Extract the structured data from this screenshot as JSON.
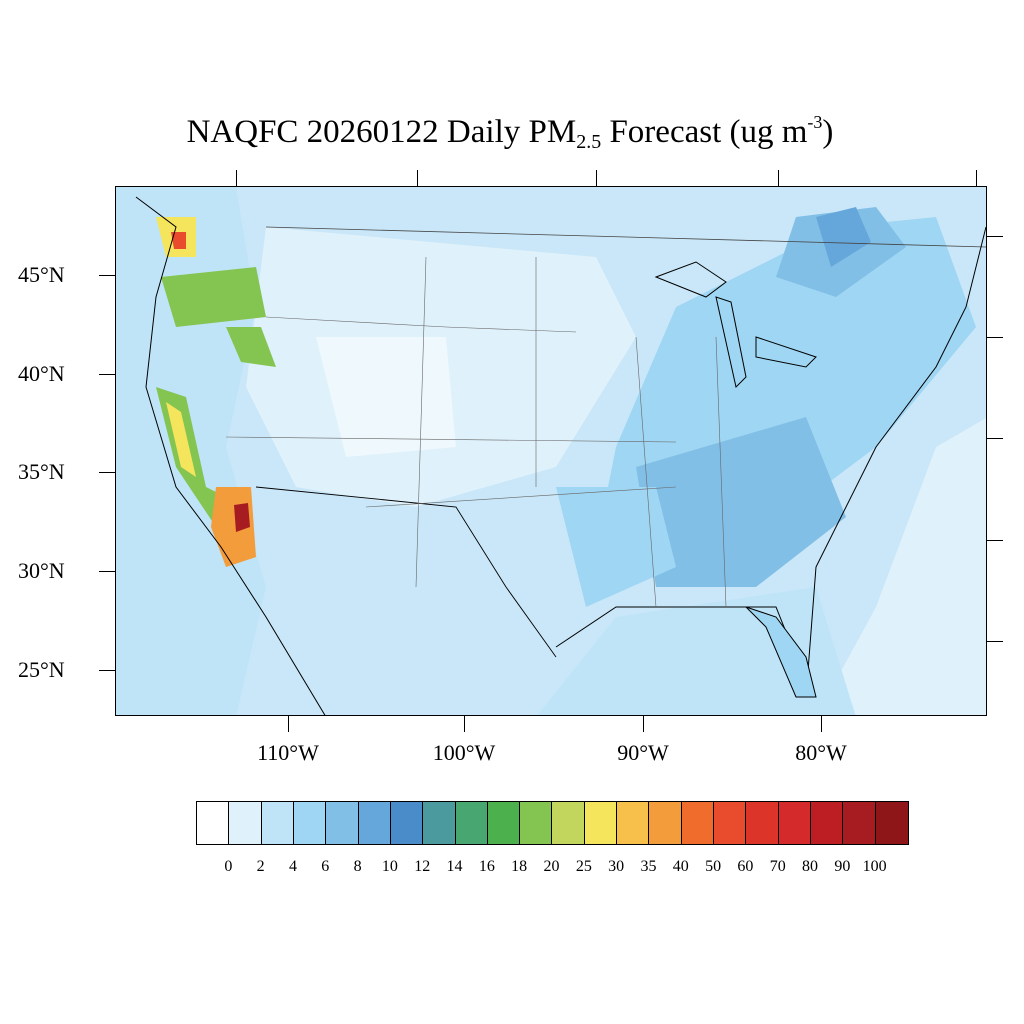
{
  "title": {
    "prefix": "NAQFC 20260122 Daily PM",
    "subscript": "2.5",
    "middle": " Forecast (ug m",
    "superscript": "-3",
    "suffix": ")"
  },
  "axes": {
    "lat_labels": [
      "45°N",
      "40°N",
      "35°N",
      "30°N",
      "25°N"
    ],
    "lon_labels": [
      "110°W",
      "100°W",
      "90°W",
      "80°W"
    ]
  },
  "colorbar": {
    "labels": [
      "0",
      "2",
      "4",
      "6",
      "8",
      "10",
      "12",
      "14",
      "16",
      "18",
      "20",
      "25",
      "30",
      "35",
      "40",
      "50",
      "60",
      "70",
      "80",
      "90",
      "100"
    ],
    "colors": [
      "#ffffff",
      "#dff1fb",
      "#bfe4f7",
      "#9fd6f3",
      "#82bfe6",
      "#66a7db",
      "#4a8cc9",
      "#4a9a9e",
      "#48a670",
      "#4cb04c",
      "#84c450",
      "#c2d55c",
      "#f4e55c",
      "#f6c04a",
      "#f39c3c",
      "#f06c2c",
      "#e84c2c",
      "#dc3428",
      "#d42a2c",
      "#bc1e24",
      "#a61c20",
      "#8e1618"
    ]
  },
  "map_legend": {
    "variable": "PM2.5",
    "units": "ug m-3",
    "background_color": "#c9e7f8",
    "hotspot_colors": [
      "#4a9a9e",
      "#48a670",
      "#84c450",
      "#f4e55c",
      "#f39c3c",
      "#e84c2c",
      "#a61c20"
    ]
  }
}
